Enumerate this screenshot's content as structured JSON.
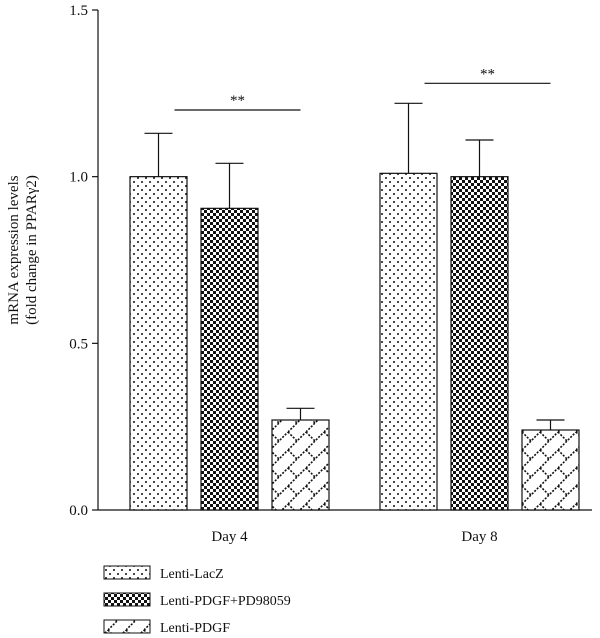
{
  "chart_data": {
    "type": "bar",
    "title": "",
    "xlabel": "",
    "ylabel": [
      "mRNA expression levels",
      "(fold change in PPARγ2)"
    ],
    "ylim": [
      0,
      1.5
    ],
    "yticks": [
      "0.0",
      "0.5",
      "1.0",
      "1.5"
    ],
    "categories": [
      "Day 4",
      "Day 8"
    ],
    "series": [
      {
        "name": "Lenti-LacZ",
        "pattern": "dots",
        "values": [
          1.0,
          1.01
        ],
        "errors": [
          0.13,
          0.21
        ]
      },
      {
        "name": "Lenti-PDGF+PD98059",
        "pattern": "checker",
        "values": [
          0.905,
          1.0
        ],
        "errors": [
          0.135,
          0.11
        ]
      },
      {
        "name": "Lenti-PDGF",
        "pattern": "zigzag",
        "values": [
          0.27,
          0.24
        ],
        "errors": [
          0.035,
          0.03
        ]
      }
    ],
    "significance": [
      {
        "category": "Day 4",
        "label": "**",
        "from_series": 0,
        "to_series": 2,
        "level": 1.2
      },
      {
        "category": "Day 8",
        "label": "**",
        "from_series": 0,
        "to_series": 2,
        "level": 1.28
      }
    ],
    "legend_position": "bottom-left",
    "grid": false
  }
}
